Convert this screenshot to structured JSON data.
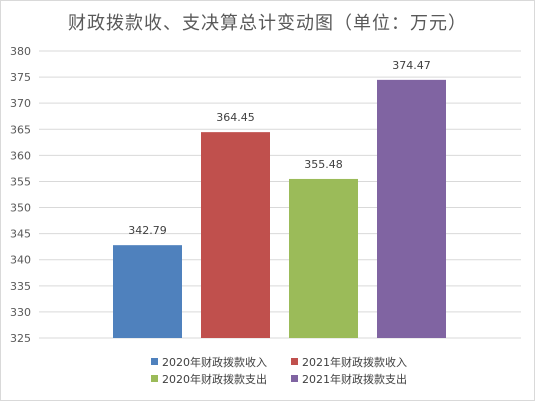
{
  "chart_data": {
    "type": "bar",
    "title": "财政拨款收、支决算总计变动图（单位：万元）",
    "categories": [
      "2020年财政拨款收入",
      "2021年财政拨款收入",
      "2020年财政拨款支出",
      "2021年财政拨款支出"
    ],
    "values": [
      342.79,
      364.45,
      355.48,
      374.47
    ],
    "value_labels": [
      "342.79",
      "364.45",
      "355.48",
      "374.47"
    ],
    "colors": [
      "#4f81bd",
      "#c0504d",
      "#9bbb59",
      "#8064a2"
    ],
    "ylim": [
      325,
      380
    ],
    "yticks": [
      "325",
      "330",
      "335",
      "340",
      "345",
      "350",
      "355",
      "360",
      "365",
      "370",
      "375",
      "380"
    ],
    "grid": true,
    "legend_position": "bottom"
  }
}
